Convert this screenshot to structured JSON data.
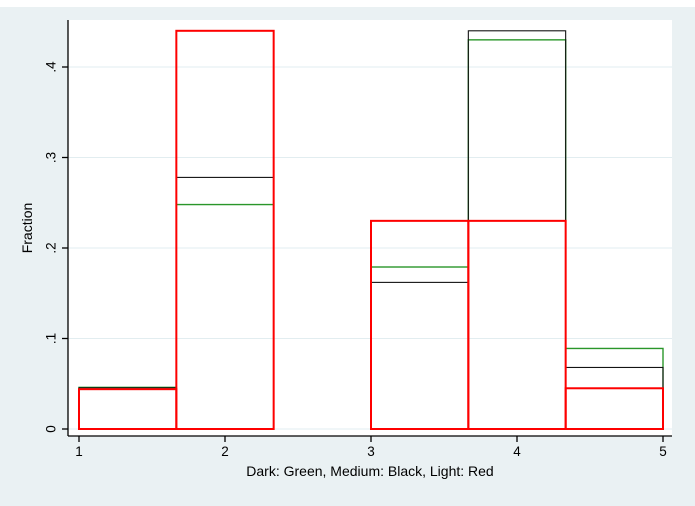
{
  "figure": {
    "background_color": "#eaf1f3",
    "plot_background": "#ffffff",
    "grid_color": "#e2edf0",
    "axis_color": "#000000",
    "top_strip_color": "#ffffff"
  },
  "chart_data": {
    "type": "histogram-overlay",
    "title": "",
    "xlabel": "Dark: Green, Medium: Black, Light: Red",
    "ylabel": "Fraction",
    "xlim": [
      1,
      5
    ],
    "ylim": [
      0,
      0.46
    ],
    "grid": true,
    "legend_position": "none",
    "xticks": [
      "1",
      "2",
      "3",
      "4",
      "5"
    ],
    "xtick_values": [
      1,
      2,
      3,
      4,
      5
    ],
    "yticks": [
      "0",
      ".1",
      ".2",
      ".3",
      ".4"
    ],
    "ytick_values": [
      0,
      0.1,
      0.2,
      0.3,
      0.4
    ],
    "bin_edges": [
      1,
      1.6667,
      2.3333,
      3,
      3.6667,
      4.3333,
      5
    ],
    "series": [
      {
        "name": "Dark (Green)",
        "color": "#2a962a",
        "line_width": 1.4,
        "values": [
          0.046,
          0.248,
          0,
          0.179,
          0.43,
          0.089
        ]
      },
      {
        "name": "Medium (Black)",
        "color": "#131313",
        "line_width": 1.1,
        "values": [
          0.0455,
          0.278,
          0,
          0.162,
          0.44,
          0.068
        ]
      },
      {
        "name": "Light (Red)",
        "color": "#fe0000",
        "line_width": 2.0,
        "values": [
          0.044,
          0.44,
          0,
          0.23,
          0.23,
          0.045
        ]
      }
    ]
  }
}
